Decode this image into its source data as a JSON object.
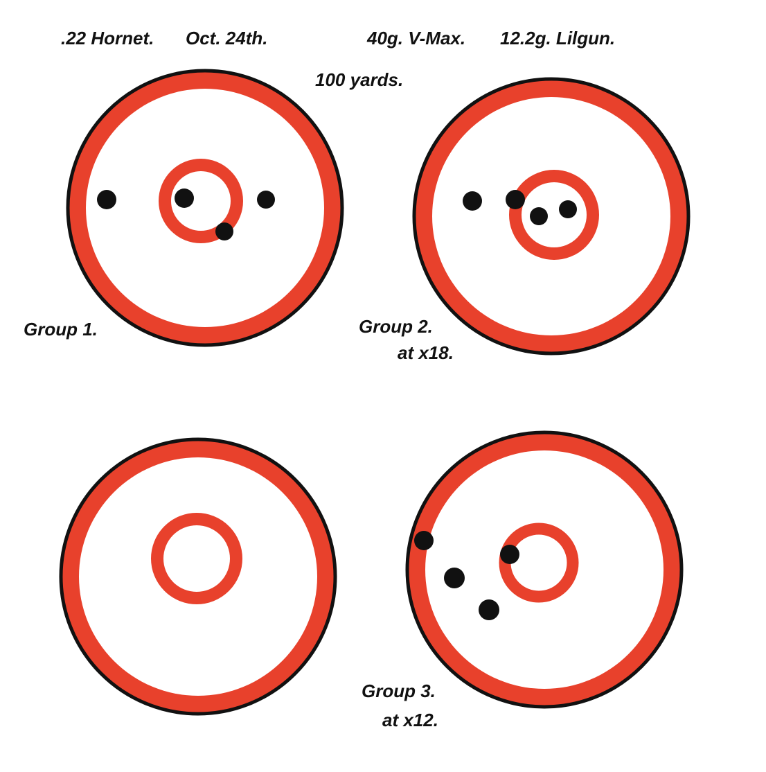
{
  "header": {
    "cartridge": ".22 Hornet.",
    "date": "Oct. 24th.",
    "bullet": "40g. V-Max.",
    "powder": "12.2g. Lilgun.",
    "distance": "100 yards."
  },
  "groups": [
    {
      "label": "Group 1."
    },
    {
      "label": "Group 2.",
      "note": "at x18."
    },
    {
      "label": "Group 3.",
      "note": "at x12."
    }
  ]
}
